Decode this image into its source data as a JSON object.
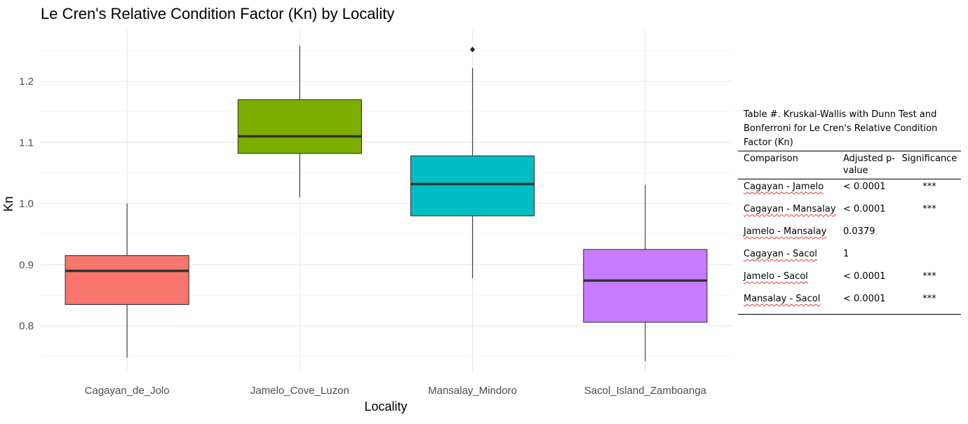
{
  "chart_data": {
    "type": "boxplot",
    "title": "Le Cren's Relative Condition Factor (Kn) by Locality",
    "xlabel": "Locality",
    "ylabel": "Kn",
    "ylim": [
      0.735,
      1.28
    ],
    "y_ticks": [
      "0.8",
      "0.9",
      "1.0",
      "1.1",
      "1.2"
    ],
    "grid": true,
    "legend": "none",
    "categories": [
      "Cagayan_de_Jolo",
      "Jamelo_Cove_Luzon",
      "Mansalay_Mindoro",
      "Sacol_Island_Zamboanga"
    ],
    "boxes": [
      {
        "category": "Cagayan_de_Jolo",
        "whisker_low": 0.748,
        "q1": 0.835,
        "median": 0.89,
        "q3": 0.915,
        "whisker_high": 1.0,
        "outliers": [],
        "color": "#F8766D"
      },
      {
        "category": "Jamelo_Cove_Luzon",
        "whisker_low": 1.01,
        "q1": 1.082,
        "median": 1.11,
        "q3": 1.17,
        "whisker_high": 1.258,
        "outliers": [],
        "color": "#7CAE00"
      },
      {
        "category": "Mansalay_Mindoro",
        "whisker_low": 0.878,
        "q1": 0.98,
        "median": 1.032,
        "q3": 1.078,
        "whisker_high": 1.222,
        "outliers": [
          1.252
        ],
        "color": "#00BFC4"
      },
      {
        "category": "Sacol_Island_Zamboanga",
        "whisker_low": 0.742,
        "q1": 0.806,
        "median": 0.874,
        "q3": 0.925,
        "whisker_high": 1.031,
        "outliers": [],
        "color": "#C77CFF"
      }
    ]
  },
  "table": {
    "caption": "Table #. Kruskal-Wallis with Dunn Test and Bonferroni for Le Cren's Relative Condition Factor (Kn)",
    "headers": {
      "comparison": "Comparison",
      "adjusted_p": "Adjusted p-value",
      "significance": "Significance"
    },
    "rows": [
      {
        "comparison": "Cagayan - Jamelo",
        "p": "< 0.0001",
        "sig": "***"
      },
      {
        "comparison": "Cagayan - Mansalay",
        "p": "< 0.0001",
        "sig": "***"
      },
      {
        "comparison": "Jamelo - Mansalay",
        "p": "0.0379",
        "sig": ""
      },
      {
        "comparison": "Cagayan - Sacol",
        "p": "1",
        "sig": ""
      },
      {
        "comparison": "Jamelo - Sacol",
        "p": "< 0.0001",
        "sig": "***"
      },
      {
        "comparison": "Mansalay - Sacol",
        "p": "< 0.0001",
        "sig": "***"
      }
    ]
  }
}
